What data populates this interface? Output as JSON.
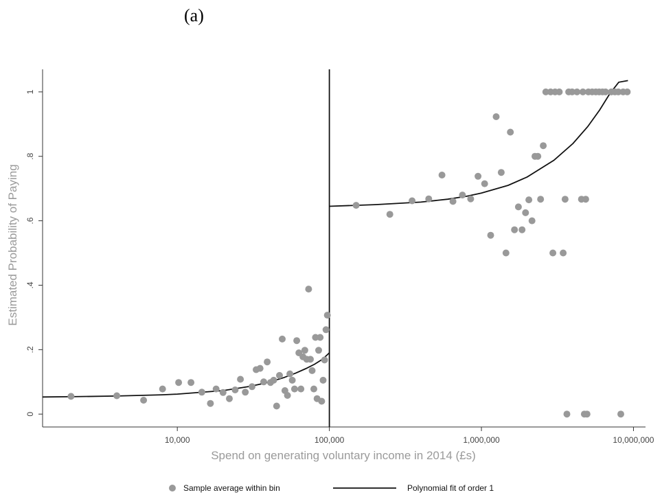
{
  "panel_label": "(a)",
  "chart_data": {
    "type": "scatter",
    "xlabel": "Spend on generating voluntary income in 2014 (£s)",
    "ylabel": "Estimated Probability of Paying",
    "xscale": "log",
    "xlim": [
      1300,
      12000000
    ],
    "ylim": [
      -0.04,
      1.07
    ],
    "x_ticks": [
      10000,
      100000,
      1000000,
      10000000
    ],
    "x_tick_labels": [
      "10,000",
      "100,000",
      "1,000,000",
      "10,000,000"
    ],
    "y_ticks": [
      0,
      0.2,
      0.4,
      0.6,
      0.8,
      1
    ],
    "y_tick_labels": [
      "0",
      ".2",
      ".4",
      ".6",
      ".8",
      "1"
    ],
    "threshold_x": 100000,
    "legend": {
      "placement": "bottom",
      "entries": [
        {
          "label": "Sample average within bin",
          "kind": "marker"
        },
        {
          "label": "Polynomial fit of order 1",
          "kind": "line"
        }
      ]
    },
    "series": [
      {
        "name": "Sample average within bin",
        "kind": "scatter",
        "color": "#999999",
        "points": [
          [
            2000,
            0.055
          ],
          [
            4000,
            0.057
          ],
          [
            6000,
            0.043
          ],
          [
            8000,
            0.078
          ],
          [
            10200,
            0.098
          ],
          [
            12300,
            0.098
          ],
          [
            14500,
            0.068
          ],
          [
            16500,
            0.033
          ],
          [
            18000,
            0.078
          ],
          [
            20000,
            0.067
          ],
          [
            22000,
            0.048
          ],
          [
            24000,
            0.075
          ],
          [
            26000,
            0.108
          ],
          [
            28000,
            0.068
          ],
          [
            31000,
            0.085
          ],
          [
            33000,
            0.138
          ],
          [
            35000,
            0.142
          ],
          [
            37000,
            0.1
          ],
          [
            39000,
            0.162
          ],
          [
            41000,
            0.098
          ],
          [
            43000,
            0.105
          ],
          [
            45000,
            0.025
          ],
          [
            47000,
            0.12
          ],
          [
            49000,
            0.233
          ],
          [
            51000,
            0.073
          ],
          [
            53000,
            0.058
          ],
          [
            55000,
            0.125
          ],
          [
            57000,
            0.105
          ],
          [
            59000,
            0.078
          ],
          [
            61000,
            0.228
          ],
          [
            63000,
            0.19
          ],
          [
            65000,
            0.078
          ],
          [
            67000,
            0.178
          ],
          [
            69000,
            0.198
          ],
          [
            71000,
            0.17
          ],
          [
            73000,
            0.388
          ],
          [
            75000,
            0.17
          ],
          [
            77000,
            0.135
          ],
          [
            79000,
            0.078
          ],
          [
            81000,
            0.238
          ],
          [
            83000,
            0.048
          ],
          [
            85000,
            0.198
          ],
          [
            87000,
            0.238
          ],
          [
            89000,
            0.04
          ],
          [
            91000,
            0.105
          ],
          [
            93000,
            0.168
          ],
          [
            95000,
            0.262
          ],
          [
            97000,
            0.307
          ],
          [
            150000,
            0.648
          ],
          [
            250000,
            0.62
          ],
          [
            350000,
            0.662
          ],
          [
            450000,
            0.668
          ],
          [
            550000,
            0.742
          ],
          [
            650000,
            0.66
          ],
          [
            750000,
            0.68
          ],
          [
            850000,
            0.668
          ],
          [
            950000,
            0.738
          ],
          [
            1050000,
            0.715
          ],
          [
            1150000,
            0.555
          ],
          [
            1250000,
            0.923
          ],
          [
            1350000,
            0.75
          ],
          [
            1450000,
            0.5
          ],
          [
            1550000,
            0.875
          ],
          [
            1650000,
            0.572
          ],
          [
            1750000,
            0.643
          ],
          [
            1850000,
            0.572
          ],
          [
            1950000,
            0.625
          ],
          [
            2050000,
            0.665
          ],
          [
            2150000,
            0.6
          ],
          [
            2250000,
            0.8
          ],
          [
            2350000,
            0.8
          ],
          [
            2450000,
            0.667
          ],
          [
            2550000,
            0.833
          ],
          [
            2650000,
            1.0
          ],
          [
            2850000,
            1.0
          ],
          [
            2950000,
            0.5
          ],
          [
            3050000,
            1.0
          ],
          [
            3250000,
            1.0
          ],
          [
            3450000,
            0.5
          ],
          [
            3550000,
            0.667
          ],
          [
            3650000,
            0.0
          ],
          [
            3750000,
            1.0
          ],
          [
            3950000,
            1.0
          ],
          [
            4250000,
            1.0
          ],
          [
            4550000,
            0.667
          ],
          [
            4650000,
            1.0
          ],
          [
            4750000,
            0.0
          ],
          [
            4850000,
            0.667
          ],
          [
            4950000,
            0.0
          ],
          [
            5050000,
            1.0
          ],
          [
            5350000,
            1.0
          ],
          [
            5650000,
            1.0
          ],
          [
            5950000,
            1.0
          ],
          [
            6250000,
            1.0
          ],
          [
            6550000,
            1.0
          ],
          [
            7150000,
            1.0
          ],
          [
            7550000,
            1.0
          ],
          [
            7950000,
            1.0
          ],
          [
            8250000,
            0.0
          ],
          [
            8550000,
            1.0
          ],
          [
            9100000,
            1.0
          ]
        ]
      },
      {
        "name": "Polynomial fit of order 1",
        "kind": "line",
        "color": "#111111",
        "segments": [
          [
            [
              1300,
              0.053
            ],
            [
              2000,
              0.054
            ],
            [
              4000,
              0.056
            ],
            [
              8000,
              0.06
            ],
            [
              10000,
              0.062
            ],
            [
              20000,
              0.073
            ],
            [
              30000,
              0.086
            ],
            [
              40000,
              0.099
            ],
            [
              50000,
              0.113
            ],
            [
              60000,
              0.127
            ],
            [
              70000,
              0.141
            ],
            [
              80000,
              0.155
            ],
            [
              90000,
              0.17
            ],
            [
              100000,
              0.19
            ]
          ],
          [
            [
              100000,
              0.645
            ],
            [
              200000,
              0.65
            ],
            [
              400000,
              0.658
            ],
            [
              600000,
              0.667
            ],
            [
              800000,
              0.676
            ],
            [
              1000000,
              0.686
            ],
            [
              1500000,
              0.71
            ],
            [
              2000000,
              0.736
            ],
            [
              3000000,
              0.788
            ],
            [
              4000000,
              0.84
            ],
            [
              5000000,
              0.892
            ],
            [
              6000000,
              0.944
            ],
            [
              7000000,
              0.995
            ],
            [
              8000000,
              1.03
            ],
            [
              9200000,
              1.035
            ]
          ]
        ]
      }
    ]
  }
}
